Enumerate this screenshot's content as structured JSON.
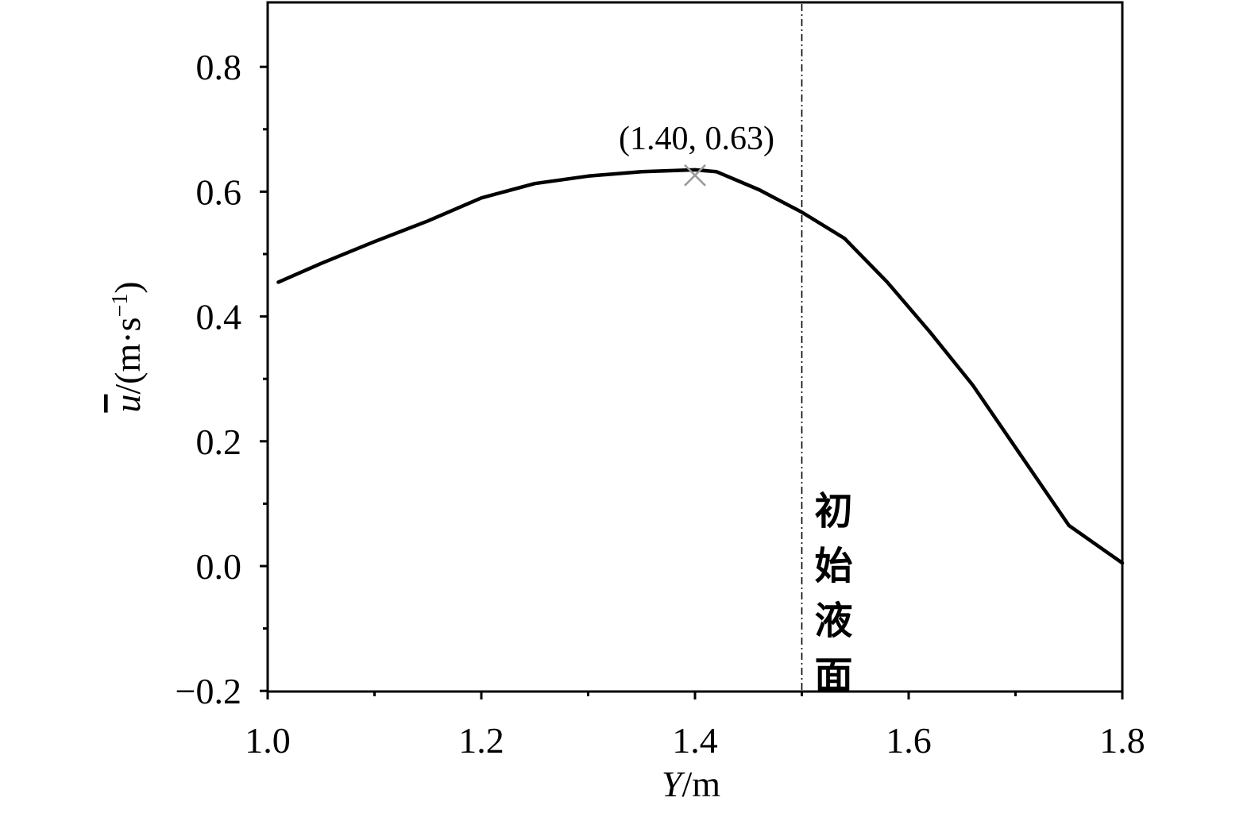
{
  "chart_data": {
    "type": "line",
    "title": "",
    "xlabel": {
      "var": "Y",
      "unit": "/m"
    },
    "ylabel": {
      "var": "u",
      "unit_prefix": "/(m·s",
      "unit_exp": "−1",
      "unit_suffix": ")"
    },
    "xlim": [
      1.0,
      1.8
    ],
    "ylim": [
      -0.2,
      0.9
    ],
    "x_ticks": [
      1.0,
      1.2,
      1.4,
      1.6,
      1.8
    ],
    "x_tick_labels": [
      "1.0",
      "1.2",
      "1.4",
      "1.6",
      "1.8"
    ],
    "x_minor_ticks": [
      1.1,
      1.3,
      1.5,
      1.7
    ],
    "y_ticks": [
      -0.2,
      0.0,
      0.2,
      0.4,
      0.6,
      0.8
    ],
    "y_tick_labels": [
      "−0.2",
      "0.0",
      "0.2",
      "0.4",
      "0.6",
      "0.8"
    ],
    "y_minor_ticks": [
      -0.1,
      0.1,
      0.3,
      0.5,
      0.7
    ],
    "grid": false,
    "series": [
      {
        "color": "#000000",
        "x": [
          1.01,
          1.05,
          1.1,
          1.15,
          1.2,
          1.25,
          1.3,
          1.35,
          1.4,
          1.42,
          1.46,
          1.5,
          1.54,
          1.58,
          1.62,
          1.66,
          1.7,
          1.75,
          1.8
        ],
        "y": [
          0.455,
          0.485,
          0.52,
          0.553,
          0.59,
          0.613,
          0.625,
          0.632,
          0.635,
          0.632,
          0.603,
          0.567,
          0.525,
          0.455,
          0.375,
          0.29,
          0.19,
          0.065,
          0.005
        ]
      }
    ],
    "annotations": [
      {
        "label": "(1.40, 0.63)",
        "point": [
          1.4,
          0.63
        ],
        "marker": "x",
        "marker_color": "#9a9a9a"
      }
    ],
    "reference_lines": [
      {
        "orientation": "vertical",
        "x": 1.5,
        "style": "dash-dot",
        "label": "初始液面"
      }
    ]
  }
}
